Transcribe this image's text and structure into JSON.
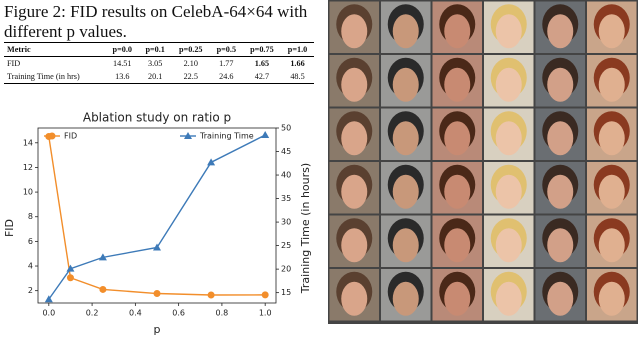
{
  "caption": "Figure 2: FID results on CelebA-64×64 with different p values.",
  "table": {
    "header": [
      "Metric",
      "p=0.0",
      "p=0.1",
      "p=0.25",
      "p=0.5",
      "p=0.75",
      "p=1.0"
    ],
    "rows": [
      [
        "FID",
        "14.51",
        "3.05",
        "2.10",
        "1.77",
        "1.65",
        "1.66"
      ],
      [
        "Training Time (in hrs)",
        "13.6",
        "20.1",
        "22.5",
        "24.6",
        "42.7",
        "48.5"
      ]
    ]
  },
  "chart_data": {
    "type": "line",
    "title": "Ablation study on ratio p",
    "x_label": "p",
    "y_label": "FID",
    "y2_label": "Training Time (in hours)",
    "x": [
      0.0,
      0.1,
      0.25,
      0.5,
      0.75,
      1.0
    ],
    "series": [
      {
        "name": "FID",
        "color": "#f28e2b",
        "marker": "o",
        "legend_loc": "upper left",
        "values": [
          14.51,
          3.05,
          2.1,
          1.77,
          1.65,
          1.66
        ]
      },
      {
        "name": "Training Time",
        "color": "#3d7ab8",
        "marker": "^",
        "axis": "y2",
        "legend_loc": "upper right",
        "values": [
          13.6,
          20.1,
          22.5,
          24.6,
          42.7,
          48.5
        ]
      }
    ],
    "xlim": [
      -0.05,
      1.05
    ],
    "xticks": [
      {
        "value": 0,
        "label": "0.0"
      },
      {
        "value": 0.2,
        "label": "0.2"
      },
      {
        "value": 0.4,
        "label": "0.4"
      },
      {
        "value": 0.6,
        "label": "0.6"
      },
      {
        "value": 0.8,
        "label": "0.8"
      },
      {
        "value": 1,
        "label": "1.0"
      }
    ],
    "ylim": [
      1.0,
      15.2
    ],
    "yticks": [
      2,
      4,
      6,
      8,
      10,
      12,
      14
    ],
    "y2lim": [
      12.8,
      50.0
    ],
    "y2ticks": [
      15,
      20,
      25,
      30,
      35,
      40,
      45,
      50
    ]
  }
}
